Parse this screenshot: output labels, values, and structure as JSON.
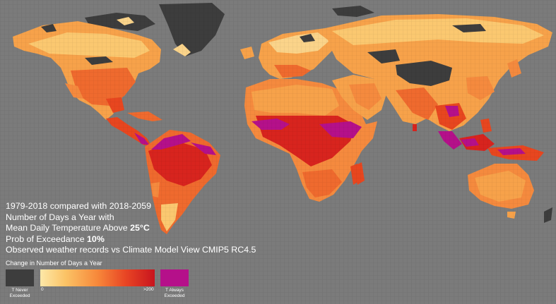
{
  "info": {
    "line1": "1979-2018 compared with 2018-2059",
    "line2": "Number of Days a Year with",
    "line3_prefix": "Mean Daily Temperature Above ",
    "line3_bold": "25°C",
    "line4_prefix": "Prob of Exceedance ",
    "line4_bold": "10%",
    "line5": "Observed weather records vs Climate Model View CMIP5 RC4.5"
  },
  "legend": {
    "title": "Change in Number of Days a Year",
    "never_line1": "T Never",
    "never_line2": "Exceeded",
    "min_label": "0",
    "max_label": ">200",
    "always_line1": "T Always",
    "always_line2": "Exceeded"
  },
  "colors": {
    "ocean": "#7b7b7b",
    "never_exceeded": "#3d3d3d",
    "always_exceeded": "#b5108a",
    "gradient_low": "#fde8a8",
    "gradient_high": "#c8141e"
  }
}
